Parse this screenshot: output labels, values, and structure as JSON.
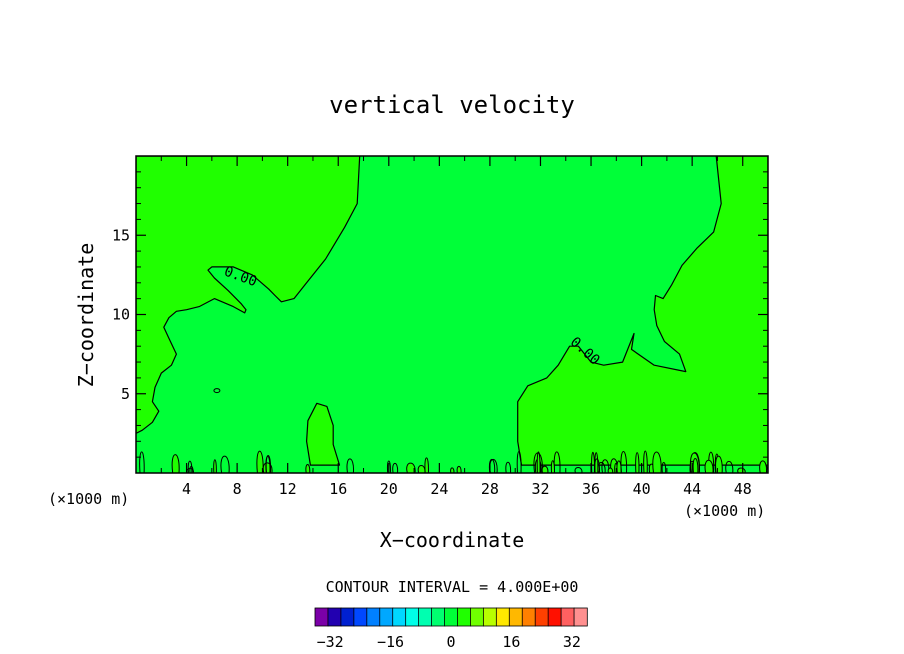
{
  "chart_data": {
    "type": "heatmap",
    "title": "vertical velocity",
    "xlabel": "X−coordinate",
    "ylabel": "Z−coordinate",
    "x_unit_left": "(×1000 m)",
    "x_unit_right": "(×1000 m)",
    "xlim": [
      0,
      50
    ],
    "ylim": [
      0,
      20
    ],
    "x_ticks": [
      4,
      8,
      12,
      16,
      20,
      24,
      28,
      32,
      36,
      40,
      44,
      48
    ],
    "y_ticks": [
      5,
      10,
      15
    ],
    "contour_label_1": "0.00",
    "contour_label_2": "0.00",
    "contour_interval_text": "CONTOUR INTERVAL = 4.000E+00",
    "contour_interval": 4,
    "colorbar": {
      "min": -36,
      "max": 36,
      "tick_values": [
        -32,
        -16,
        0,
        16,
        32
      ],
      "tick_labels": [
        "−32",
        "−16",
        "0",
        "16",
        "32"
      ],
      "colors": [
        "#7b00a8",
        "#2200b0",
        "#0020d0",
        "#0048ff",
        "#0080ff",
        "#00a8ff",
        "#00d8ff",
        "#00ffe8",
        "#00ffb0",
        "#00ff70",
        "#00ff38",
        "#20ff00",
        "#70ff00",
        "#b8ff00",
        "#ffe800",
        "#ffb800",
        "#ff8000",
        "#ff4000",
        "#ff1000",
        "#ff6060",
        "#ff9090"
      ]
    },
    "fill_colors": {
      "positive_region": "#20ff00",
      "zero_region": "#00ff38"
    },
    "zero_contour_regions": [
      {
        "name": "upper-left-positive",
        "points": [
          [
            0,
            20
          ],
          [
            17.7,
            20
          ],
          [
            17.5,
            17
          ],
          [
            16.5,
            15.5
          ],
          [
            15,
            13.5
          ],
          [
            13.5,
            12
          ],
          [
            12.5,
            11
          ],
          [
            11.5,
            10.8
          ],
          [
            11,
            11.2
          ],
          [
            10.5,
            11.6
          ],
          [
            9.2,
            12.5
          ],
          [
            7.7,
            13
          ],
          [
            6,
            13
          ],
          [
            5.7,
            12.8
          ],
          [
            6.2,
            12.3
          ],
          [
            7.3,
            11.5
          ],
          [
            8.3,
            10.7
          ],
          [
            8.7,
            10.3
          ],
          [
            8.6,
            10.1
          ],
          [
            7.7,
            10.5
          ],
          [
            6.2,
            11
          ],
          [
            5,
            10.5
          ],
          [
            4,
            10.3
          ],
          [
            3.2,
            10.2
          ],
          [
            2.6,
            9.8
          ],
          [
            2.2,
            9.2
          ],
          [
            2.6,
            8.5
          ],
          [
            3.2,
            7.5
          ],
          [
            2.8,
            6.8
          ],
          [
            2,
            6.3
          ],
          [
            1.5,
            5.4
          ],
          [
            1.3,
            4.5
          ],
          [
            1.8,
            3.9
          ],
          [
            1.3,
            3.2
          ],
          [
            0.5,
            2.7
          ],
          [
            0,
            2.5
          ]
        ]
      },
      {
        "name": "upper-right-positive",
        "points": [
          [
            45.9,
            20
          ],
          [
            46.3,
            17
          ],
          [
            45.7,
            15.2
          ],
          [
            44.4,
            14.2
          ],
          [
            43.2,
            13.1
          ],
          [
            42.4,
            11.9
          ],
          [
            41.7,
            11
          ],
          [
            41.1,
            11.2
          ],
          [
            41,
            10.3
          ],
          [
            41.2,
            9.3
          ],
          [
            41.8,
            8.3
          ],
          [
            43,
            7.5
          ],
          [
            43.5,
            6.4
          ],
          [
            41,
            6.8
          ],
          [
            39.2,
            7.8
          ],
          [
            39.4,
            8.8
          ],
          [
            38.5,
            7
          ],
          [
            37,
            6.8
          ],
          [
            36,
            7
          ],
          [
            35,
            8
          ],
          [
            34.3,
            8
          ],
          [
            33.4,
            6.8
          ],
          [
            32.5,
            6
          ],
          [
            31,
            5.5
          ],
          [
            30.2,
            4.5
          ],
          [
            30.2,
            2
          ],
          [
            30.5,
            0.5
          ],
          [
            50,
            0.5
          ],
          [
            50,
            20
          ]
        ]
      },
      {
        "name": "lower-left-blob",
        "points": [
          [
            13.8,
            0.5
          ],
          [
            13.5,
            2
          ],
          [
            13.6,
            3.3
          ],
          [
            14.3,
            4.4
          ],
          [
            15.1,
            4.2
          ],
          [
            15.6,
            3
          ],
          [
            15.6,
            1.8
          ],
          [
            16.1,
            0.5
          ]
        ]
      }
    ]
  }
}
